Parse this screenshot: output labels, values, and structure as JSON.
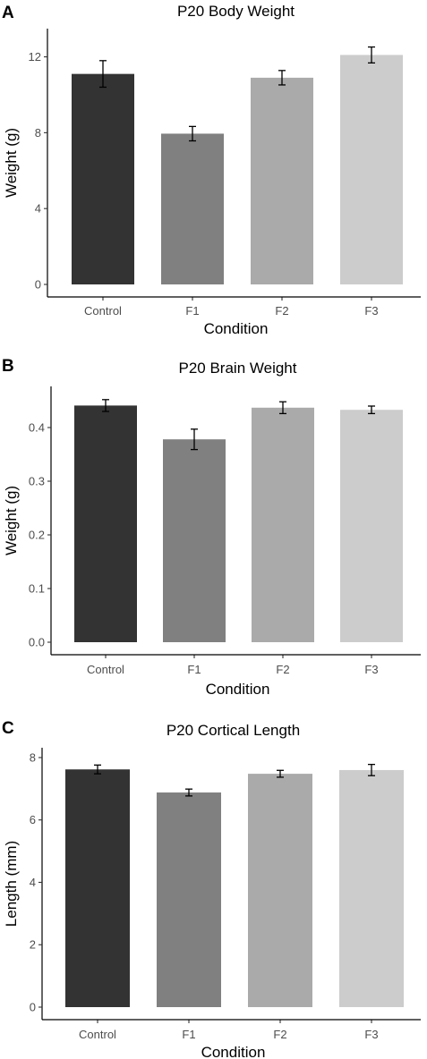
{
  "chart_data": [
    {
      "panel": "A",
      "type": "bar",
      "title": "P20 Body Weight",
      "xlabel": "Condition",
      "ylabel": "Weight (g)",
      "categories": [
        "Control",
        "F1",
        "F2",
        "F3"
      ],
      "values": [
        11.1,
        7.95,
        10.9,
        12.1
      ],
      "errors": [
        0.7,
        0.38,
        0.38,
        0.42
      ],
      "colors": [
        "#333333",
        "#808080",
        "#aaaaaa",
        "#cccccc"
      ],
      "ylim": [
        0,
        13.3
      ],
      "yticks": [
        0,
        4,
        8,
        12
      ],
      "ytick_labels": [
        "0",
        "4",
        "8",
        "12"
      ],
      "grid": false
    },
    {
      "panel": "B",
      "type": "bar",
      "title": "P20 Brain Weight",
      "xlabel": "Condition",
      "ylabel": "Weight (g)",
      "categories": [
        "Control",
        "F1",
        "F2",
        "F3"
      ],
      "values": [
        0.441,
        0.378,
        0.437,
        0.433
      ],
      "errors": [
        0.011,
        0.019,
        0.011,
        0.007
      ],
      "colors": [
        "#333333",
        "#808080",
        "#aaaaaa",
        "#cccccc"
      ],
      "ylim": [
        0,
        0.47
      ],
      "yticks": [
        0,
        0.1,
        0.2,
        0.3,
        0.4
      ],
      "ytick_labels": [
        "0.0",
        "0.1",
        "0.2",
        "0.3",
        "0.4"
      ],
      "grid": false
    },
    {
      "panel": "C",
      "type": "bar",
      "title": "P20 Cortical Length",
      "xlabel": "Condition",
      "ylabel": "Length (mm)",
      "categories": [
        "Control",
        "F1",
        "F2",
        "F3"
      ],
      "values": [
        7.62,
        6.88,
        7.48,
        7.6
      ],
      "errors": [
        0.14,
        0.11,
        0.11,
        0.18
      ],
      "colors": [
        "#333333",
        "#808080",
        "#aaaaaa",
        "#cccccc"
      ],
      "ylim": [
        0,
        8.2
      ],
      "yticks": [
        0,
        2,
        4,
        6,
        8
      ],
      "ytick_labels": [
        "0",
        "2",
        "4",
        "6",
        "8"
      ],
      "grid": false
    }
  ]
}
